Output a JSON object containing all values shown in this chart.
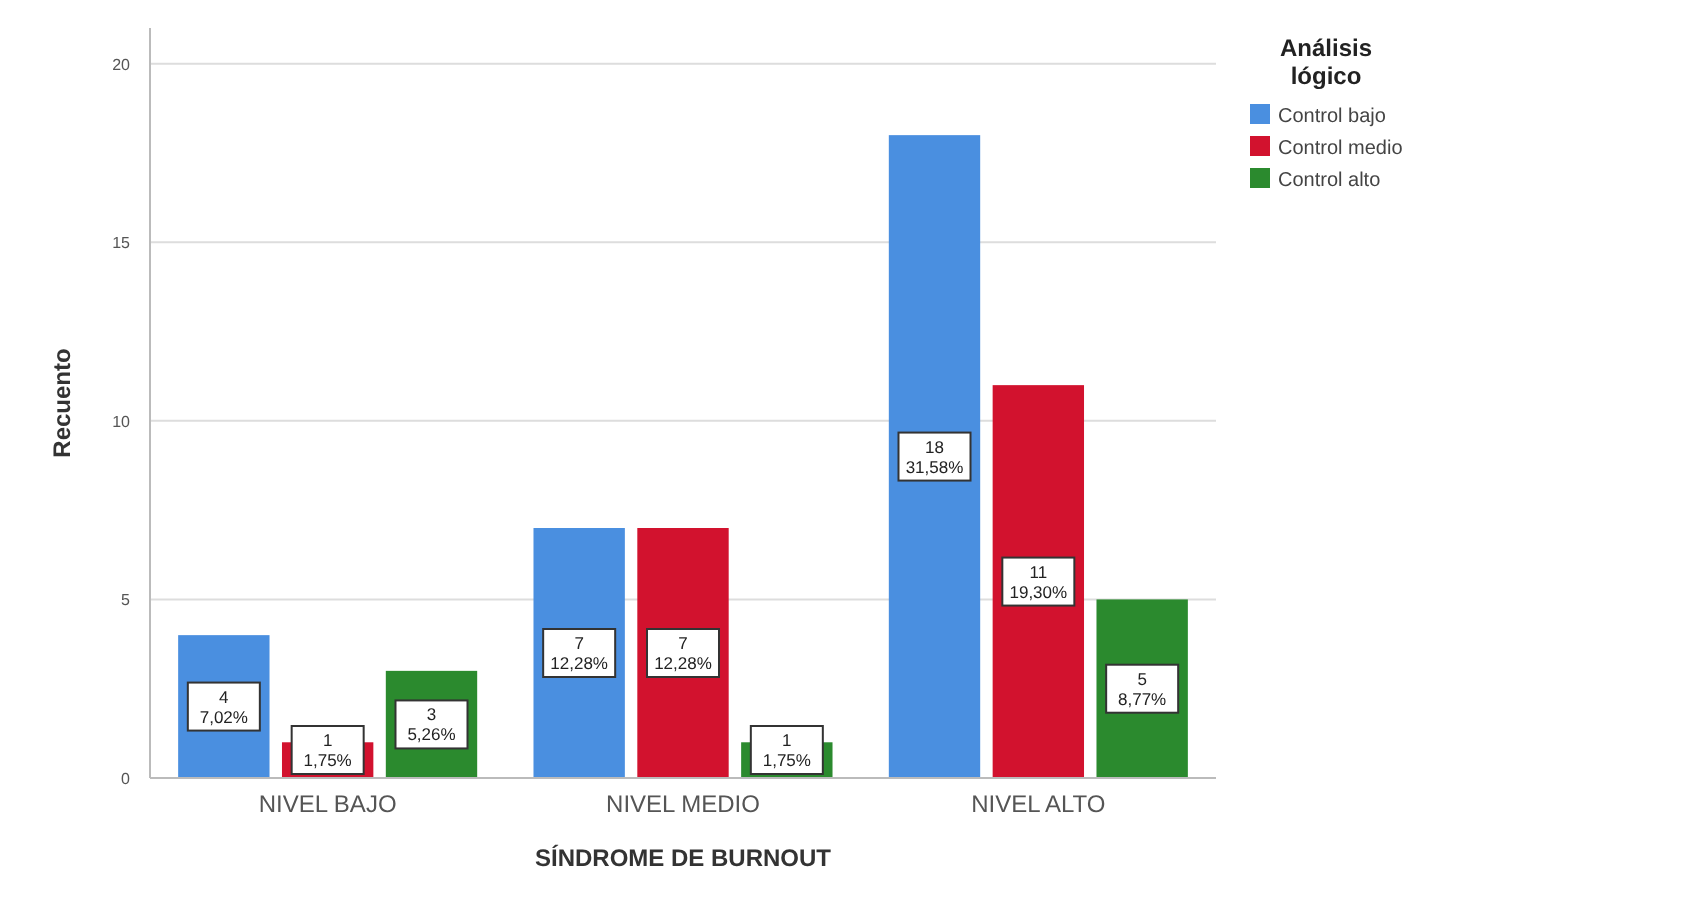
{
  "chart_data": {
    "type": "bar",
    "xlabel": "SÍNDROME DE BURNOUT",
    "ylabel": "Recuento",
    "legend_title": "Análisis lógico",
    "categories": [
      "NIVEL BAJO",
      "NIVEL MEDIO",
      "NIVEL ALTO"
    ],
    "series": [
      {
        "name": "Control bajo",
        "color": "#4a8fe0",
        "values": [
          4,
          7,
          18
        ],
        "value_labels": [
          "4\n7,02%",
          "7\n12,28%",
          "18\n31,58%"
        ]
      },
      {
        "name": "Control medio",
        "color": "#d2122e",
        "values": [
          1,
          7,
          11
        ],
        "value_labels": [
          "1\n1,75%",
          "7\n12,28%",
          "11\n19,30%"
        ]
      },
      {
        "name": "Control alto",
        "color": "#2b8a2e",
        "values": [
          3,
          1,
          5
        ],
        "value_labels": [
          "3\n5,26%",
          "1\n1,75%",
          "5\n8,77%"
        ]
      }
    ],
    "ylim": [
      0,
      21
    ],
    "yticks": [
      0,
      5,
      10,
      15,
      20
    ],
    "grid": "y",
    "legend": "top right"
  }
}
